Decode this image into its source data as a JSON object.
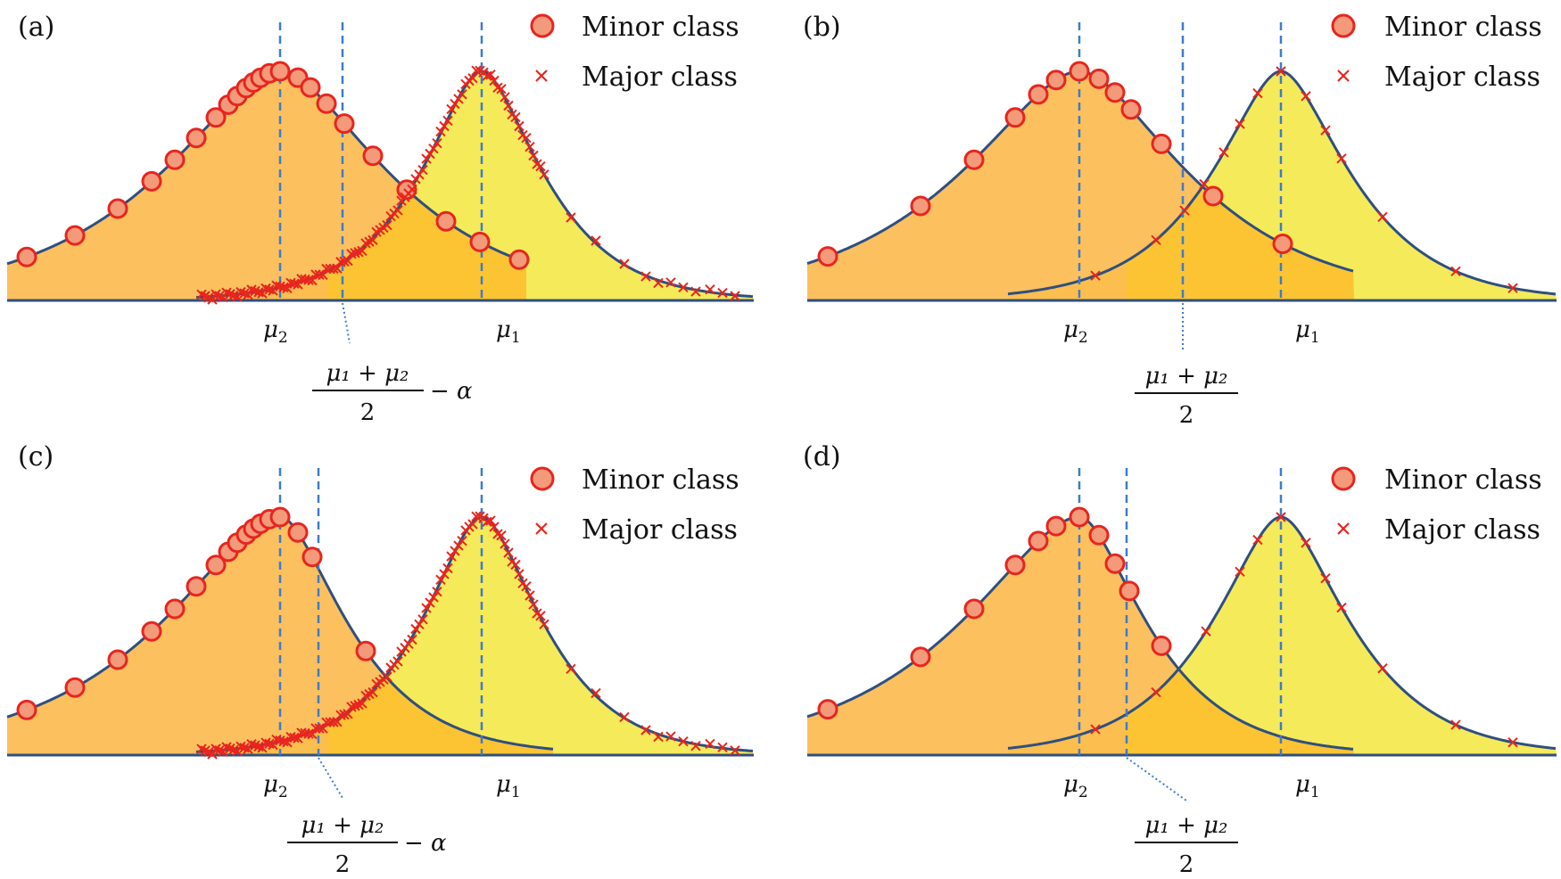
{
  "panels": [
    {
      "id": "a",
      "label": "(a)",
      "legend": {
        "minor": "Minor class",
        "major": "Major class"
      },
      "mu2_label": "μ",
      "mu2_sub": "2",
      "mu1_label": "μ",
      "mu1_sub": "1",
      "threshold_num": "μ₁ + μ₂",
      "threshold_den": "2",
      "threshold_suffix": "− α"
    },
    {
      "id": "b",
      "label": "(b)",
      "legend": {
        "minor": "Minor class",
        "major": "Major class"
      },
      "mu2_label": "μ",
      "mu2_sub": "2",
      "mu1_label": "μ",
      "mu1_sub": "1",
      "threshold_num": "μ₁ + μ₂",
      "threshold_den": "2",
      "threshold_suffix": ""
    },
    {
      "id": "c",
      "label": "(c)",
      "legend": {
        "minor": "Minor class",
        "major": "Major class"
      },
      "mu2_label": "μ",
      "mu2_sub": "2",
      "mu1_label": "μ",
      "mu1_sub": "1",
      "threshold_num": "μ₁ + μ₂",
      "threshold_den": "2",
      "threshold_suffix": "− α"
    },
    {
      "id": "d",
      "label": "(d)",
      "legend": {
        "minor": "Minor class",
        "major": "Major class"
      },
      "mu2_label": "μ",
      "mu2_sub": "2",
      "mu1_label": "μ",
      "mu1_sub": "1",
      "threshold_num": "μ₁ + μ₂",
      "threshold_den": "2",
      "threshold_suffix": ""
    }
  ],
  "colors": {
    "minor_fill": "#fdb94e",
    "major_fill": "#f5ea5a",
    "overlap_fill": "#fbc52a",
    "curve": "#2f4f7f",
    "dashed": "#3d7cc9",
    "marker": "#e8251e",
    "marker_fill": "#f29a7a"
  }
}
